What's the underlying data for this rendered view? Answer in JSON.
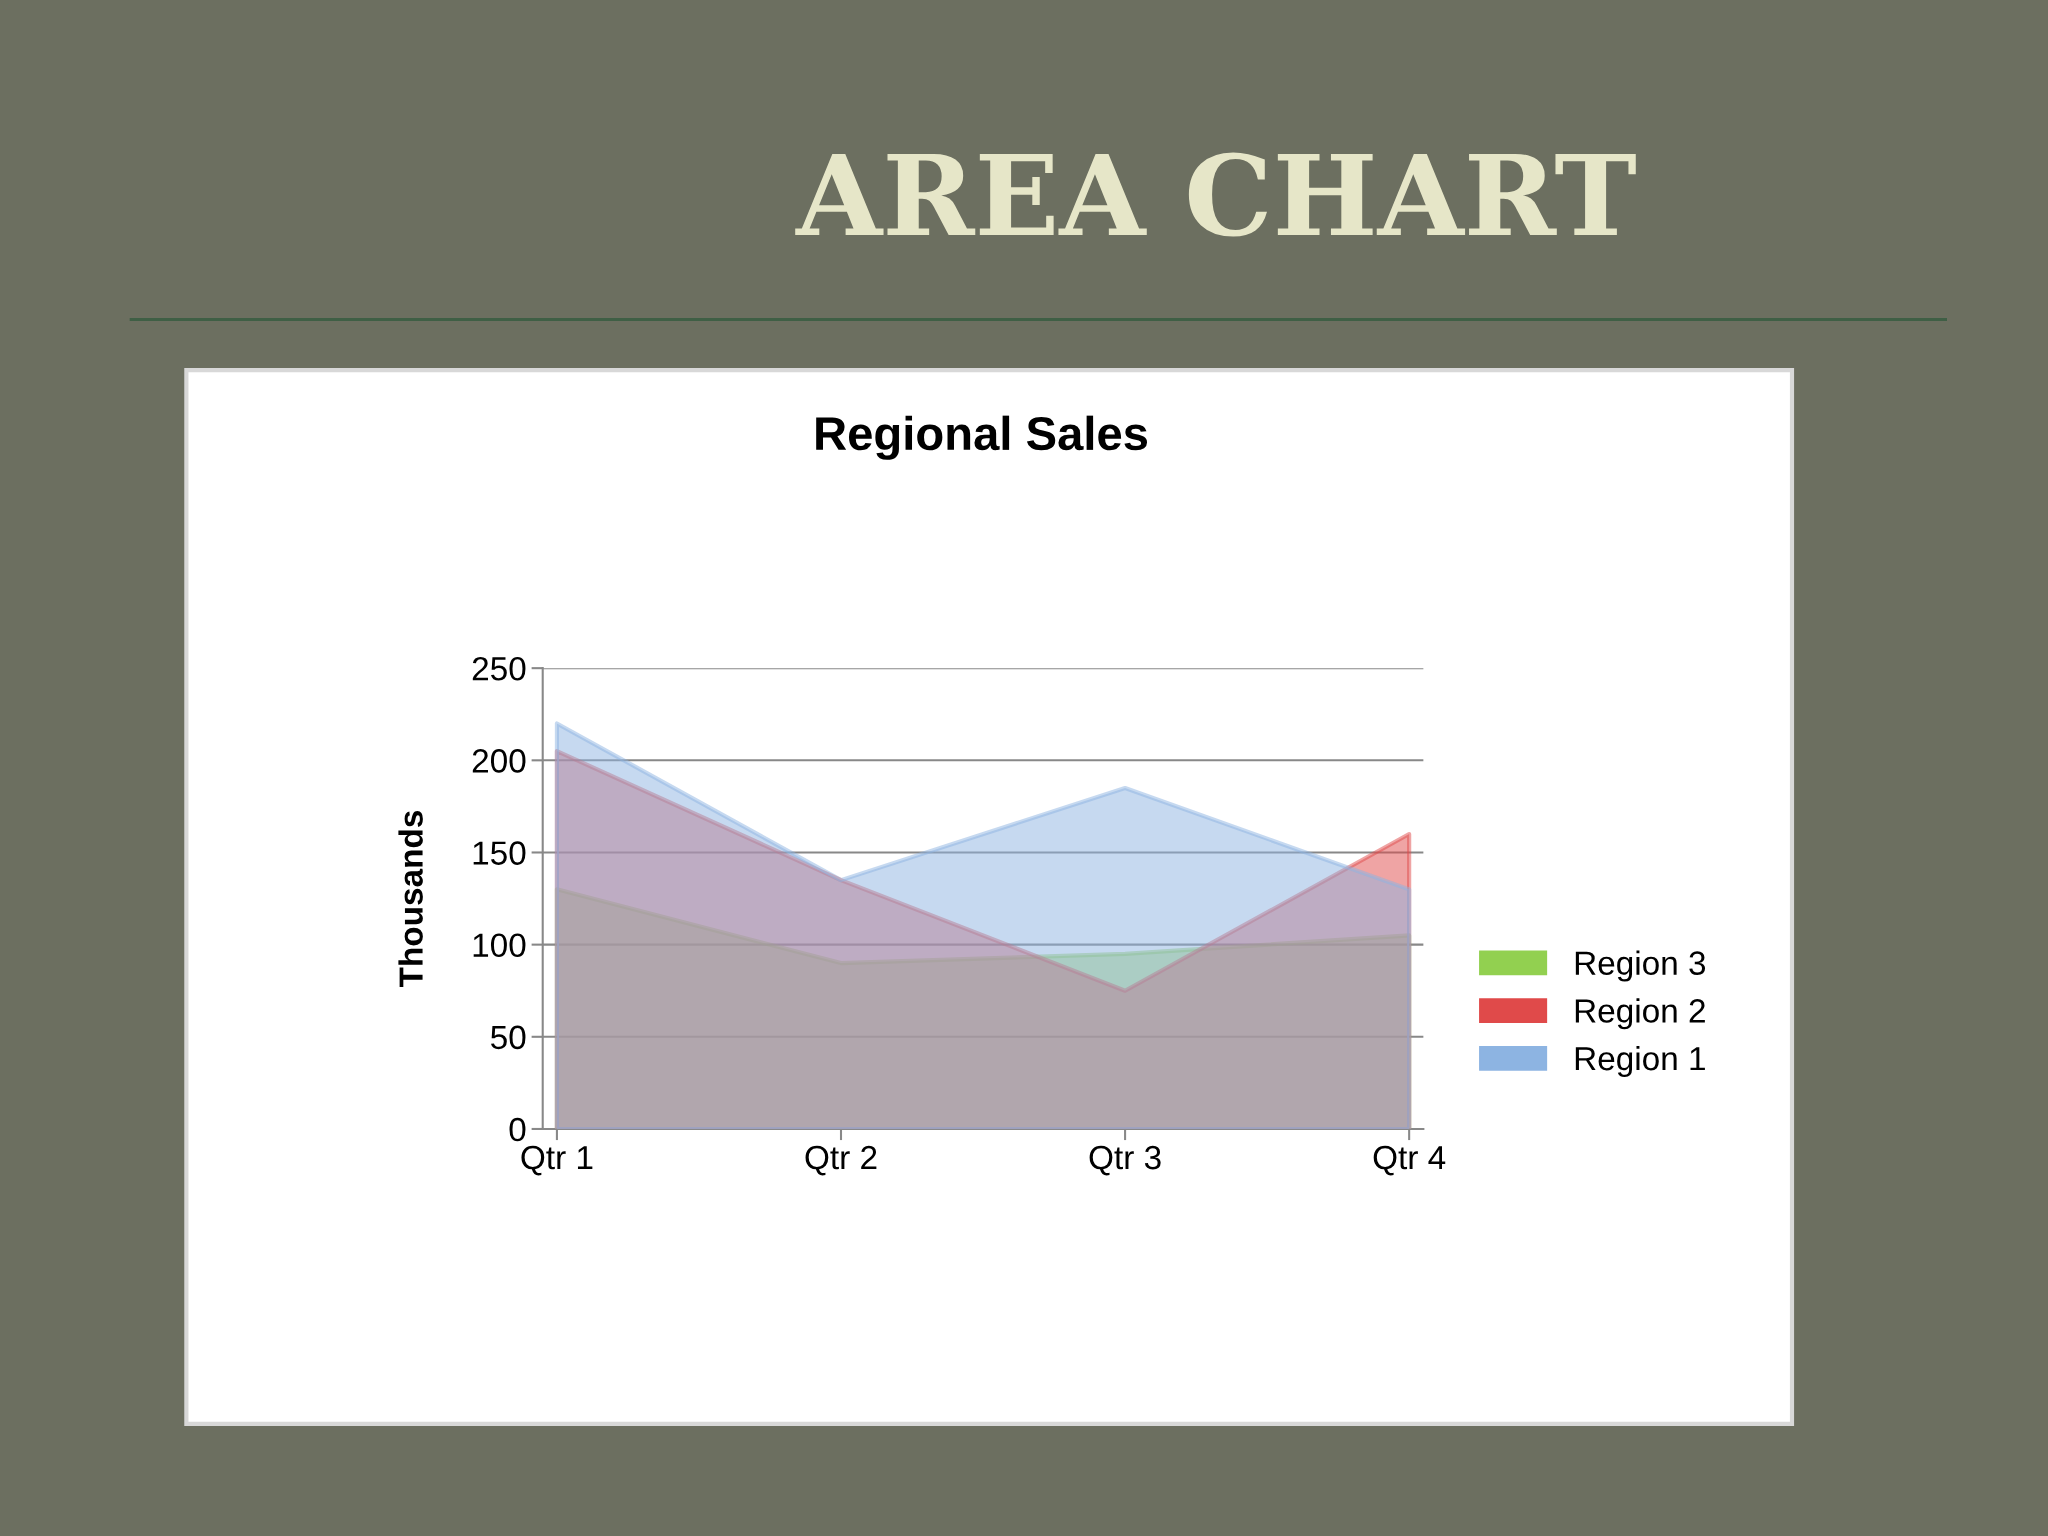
{
  "chart_data": {
    "type": "area",
    "title": "AREA CHART",
    "subtitle": "Regional Sales",
    "ylabel": "Thousands",
    "categories": [
      "Qtr 1",
      "Qtr 2",
      "Qtr 3",
      "Qtr 4"
    ],
    "series": [
      {
        "name": "Region 1",
        "color": "#8db4e2",
        "values": [
          220,
          135,
          185,
          130
        ]
      },
      {
        "name": "Region 2",
        "color": "#e04a4a",
        "values": [
          205,
          135,
          75,
          160
        ]
      },
      {
        "name": "Region 3",
        "color": "#92d050",
        "values": [
          130,
          90,
          95,
          105
        ]
      }
    ],
    "ylim": [
      0,
      250
    ],
    "yticks": [
      0,
      50,
      100,
      150,
      200,
      250
    ],
    "grid": "y",
    "legend": "right"
  }
}
